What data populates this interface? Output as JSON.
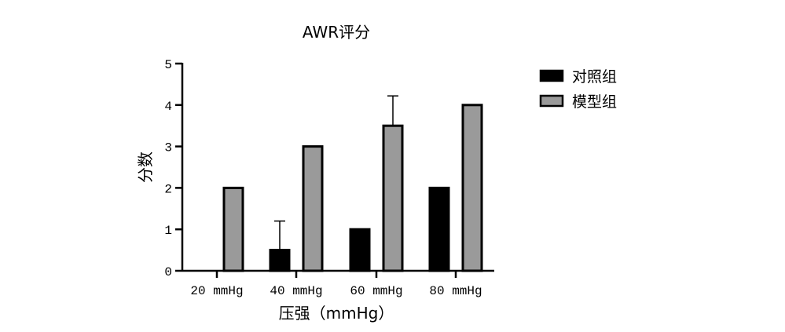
{
  "chart_data": {
    "type": "bar",
    "title": "AWR评分",
    "xlabel": "压强（mmHg）",
    "ylabel": "分数",
    "categories": [
      "20 mmHg",
      "40 mmHg",
      "60 mmHg",
      "80 mmHg"
    ],
    "ylim": [
      0,
      5
    ],
    "yticks": [
      0,
      1,
      2,
      3,
      4,
      5
    ],
    "grid": false,
    "legend_position": "top-right",
    "series": [
      {
        "name": "对照组",
        "values": [
          0,
          0.5,
          1,
          2
        ],
        "error": [
          0,
          0.7,
          0,
          0
        ],
        "color": "#000000"
      },
      {
        "name": "模型组",
        "values": [
          2,
          3,
          3.5,
          4
        ],
        "error": [
          0,
          0,
          0.72,
          0
        ],
        "color": "#9a9a9a"
      }
    ]
  }
}
